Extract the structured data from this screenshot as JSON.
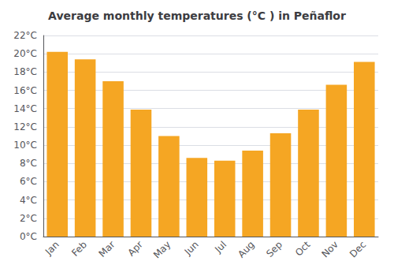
{
  "chart_data": {
    "type": "bar",
    "title": "Average monthly temperatures (°C ) in Peñaflor",
    "categories": [
      "Jan",
      "Feb",
      "Mar",
      "Apr",
      "May",
      "Jun",
      "Jul",
      "Aug",
      "Sep",
      "Oct",
      "Nov",
      "Dec"
    ],
    "values": [
      20.2,
      19.4,
      17.0,
      13.9,
      11.0,
      8.6,
      8.3,
      9.4,
      11.3,
      13.9,
      16.6,
      19.1
    ],
    "color": "#F5A623",
    "ylim": [
      0,
      22
    ],
    "yticks": [
      {
        "value": 0,
        "label": "0°C"
      },
      {
        "value": 2,
        "label": "2°C"
      },
      {
        "value": 4,
        "label": "4°C"
      },
      {
        "value": 6,
        "label": "6°C"
      },
      {
        "value": 8,
        "label": "8°C"
      },
      {
        "value": 10,
        "label": "10°C"
      },
      {
        "value": 12,
        "label": "12°C"
      },
      {
        "value": 14,
        "label": "14°C"
      },
      {
        "value": 16,
        "label": "16°C"
      },
      {
        "value": 18,
        "label": "18°C"
      },
      {
        "value": 20,
        "label": "20°C"
      },
      {
        "value": 22,
        "label": "22°C"
      }
    ],
    "grid": true
  }
}
